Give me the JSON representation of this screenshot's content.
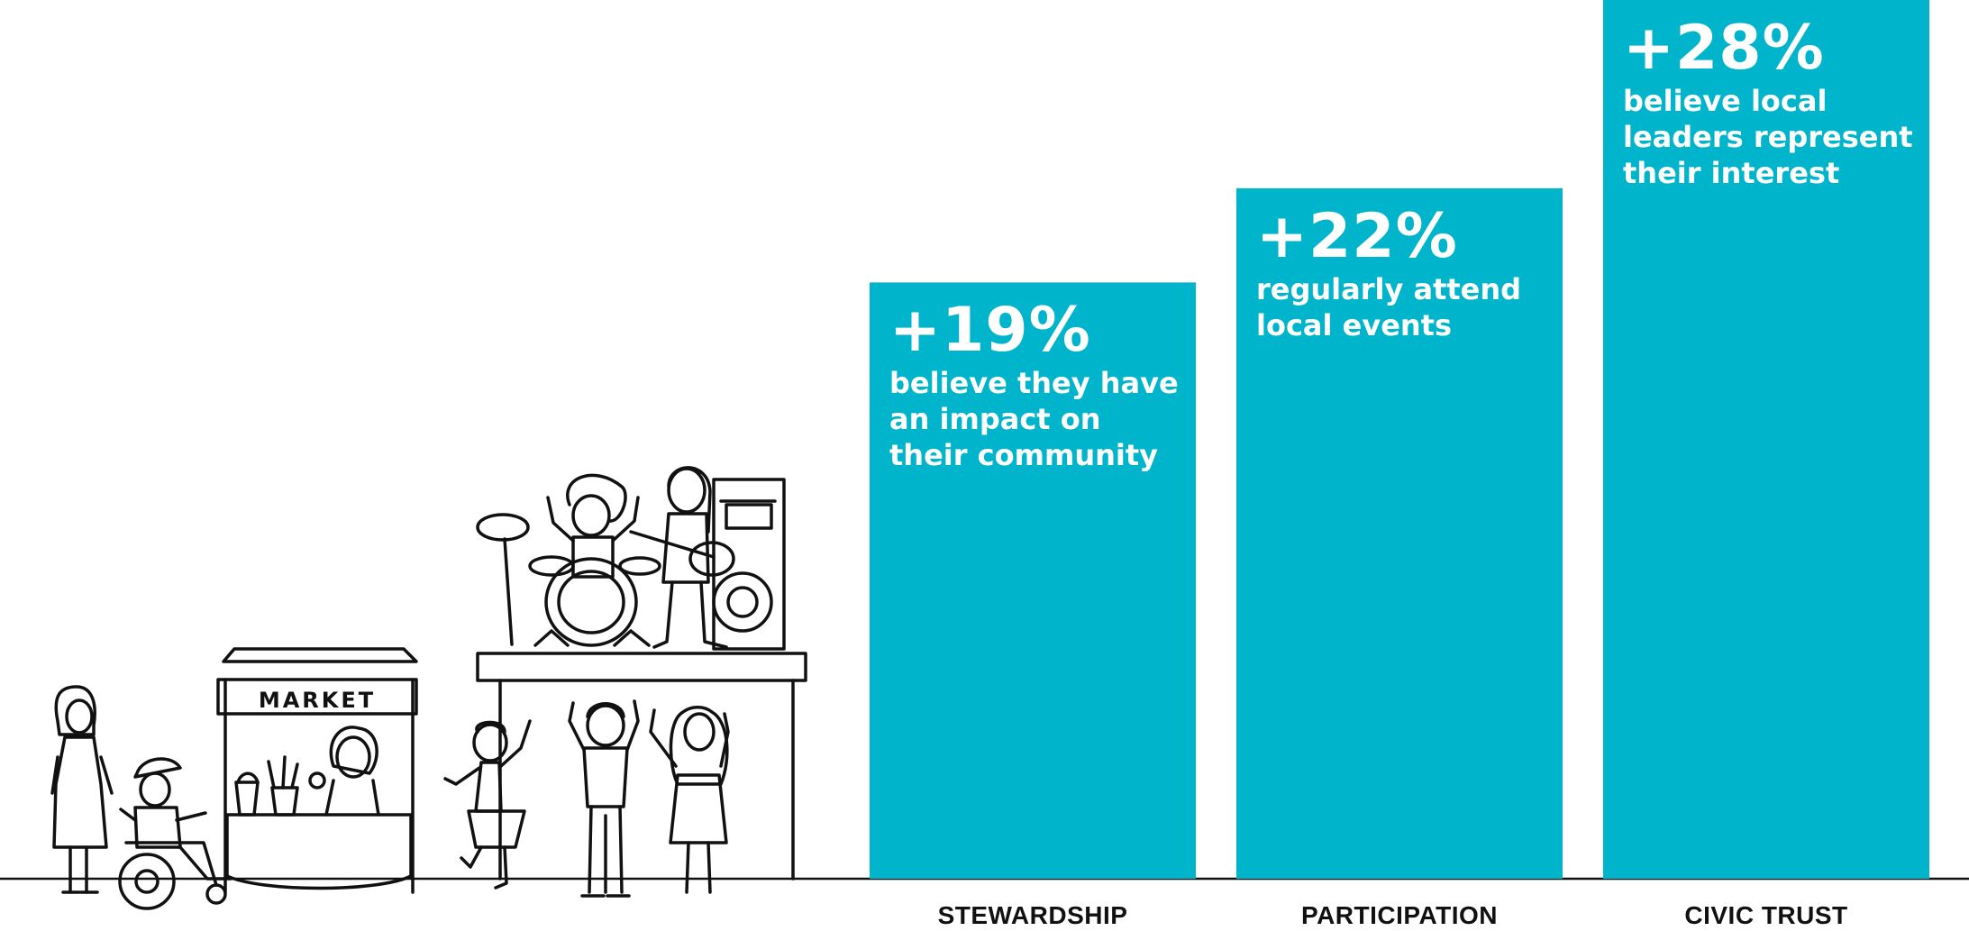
{
  "chart_data": {
    "type": "bar",
    "categories": [
      "STEWARDSHIP",
      "PARTICIPATION",
      "CIVIC TRUST"
    ],
    "values": [
      19,
      22,
      28
    ],
    "value_labels": [
      "+19%",
      "+22%",
      "+28%"
    ],
    "descriptions": [
      "believe they have\nan impact on\ntheir community",
      "regularly attend\nlocal events",
      "believe local\nleaders represent\ntheir interest"
    ],
    "ylim": [
      0,
      28
    ],
    "grid": false,
    "legend": "none",
    "bar_color": "#00B5CB"
  },
  "illustration": {
    "market_sign": "MARKET"
  }
}
